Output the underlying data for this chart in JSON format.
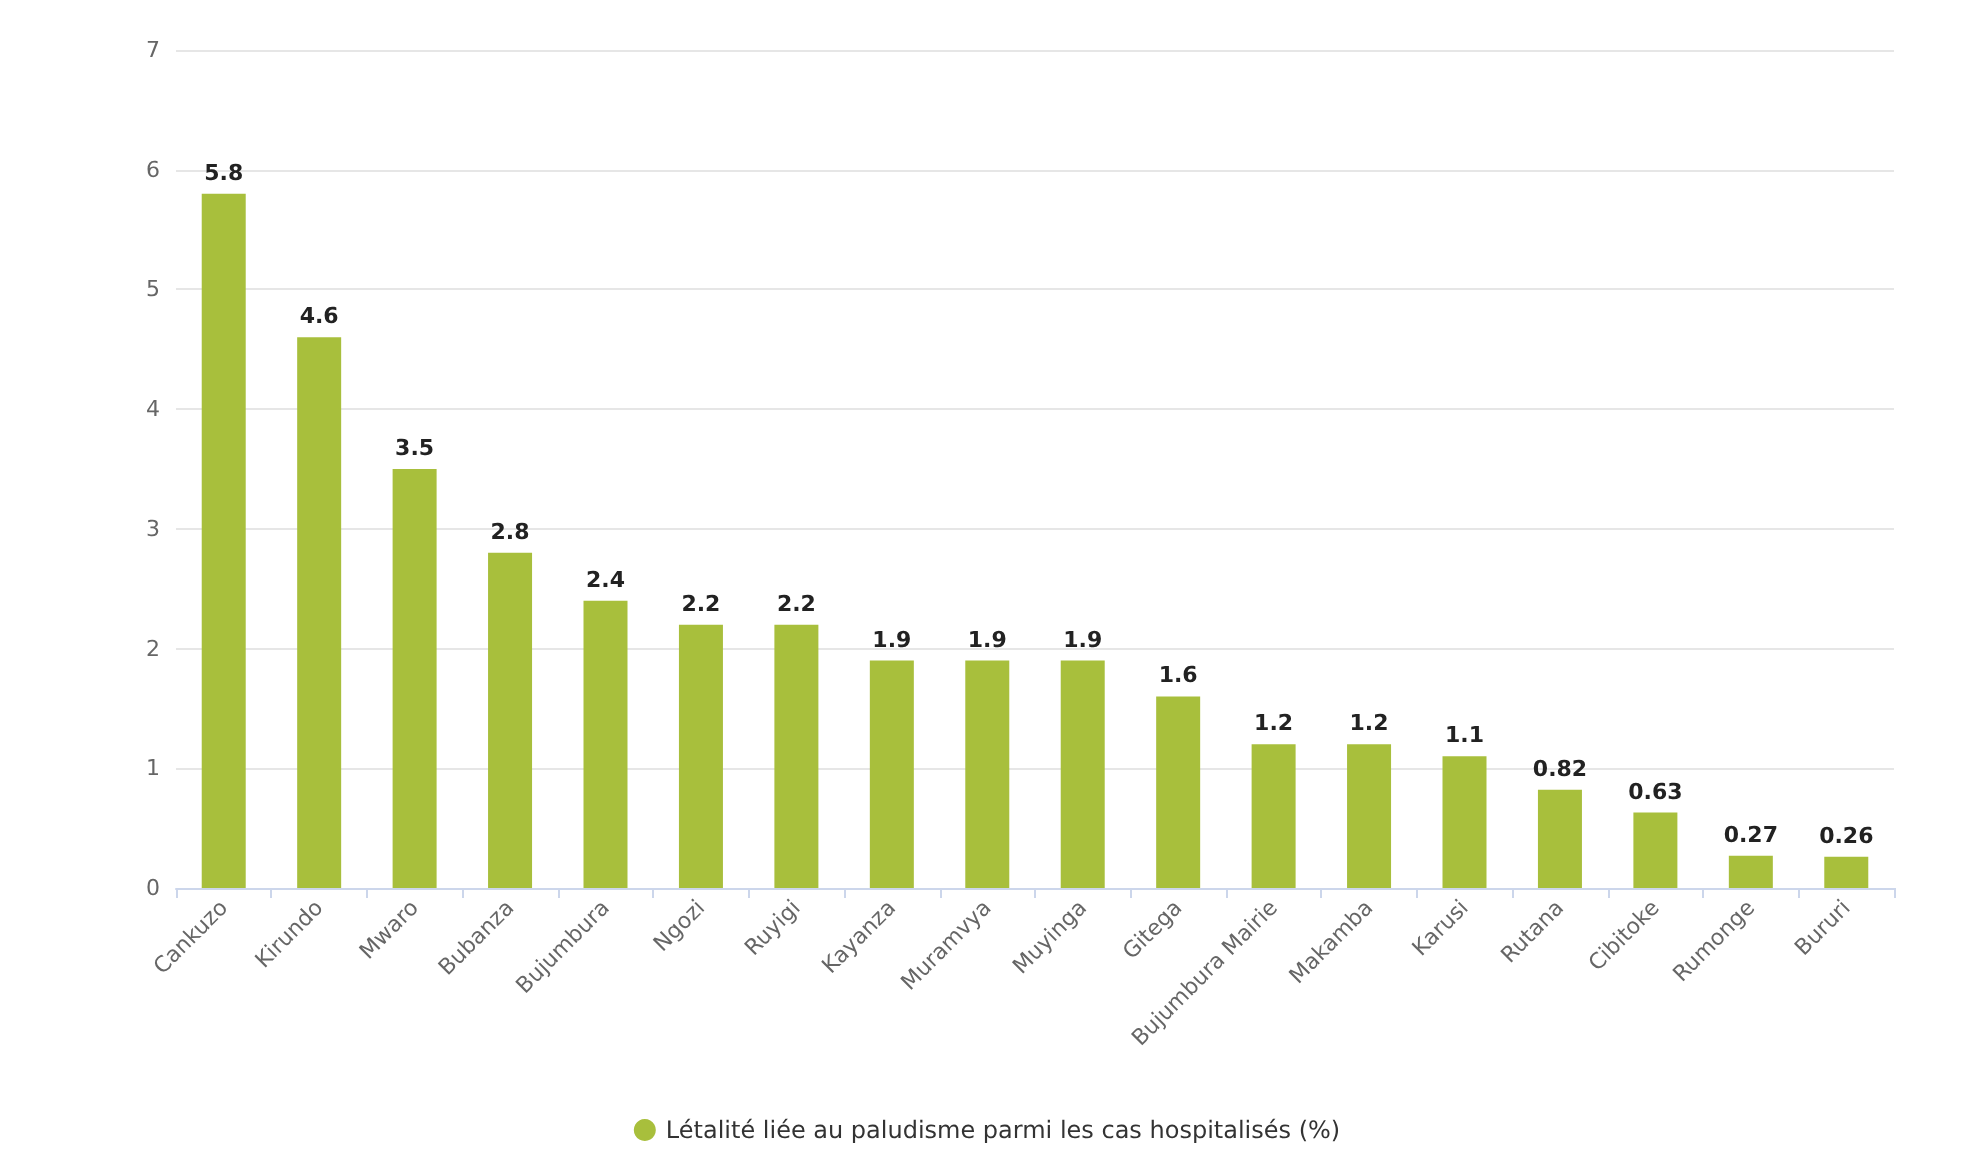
{
  "chart_data": {
    "type": "bar",
    "categories": [
      "Cankuzo",
      "Kirundo",
      "Mwaro",
      "Bubanza",
      "Bujumbura",
      "Ngozi",
      "Ruyigi",
      "Kayanza",
      "Muramvya",
      "Muyinga",
      "Gitega",
      "Bujumbura Mairie",
      "Makamba",
      "Karusi",
      "Rutana",
      "Cibitoke",
      "Rumonge",
      "Bururi"
    ],
    "series": [
      {
        "name": "Létalité liée au paludisme parmi les cas hospitalisés (%)",
        "color": "#a8bf3c",
        "values": [
          5.8,
          4.6,
          3.5,
          2.8,
          2.4,
          2.2,
          2.2,
          1.9,
          1.9,
          1.9,
          1.6,
          1.2,
          1.2,
          1.1,
          0.82,
          0.63,
          0.27,
          0.26
        ]
      }
    ],
    "ylim": [
      0,
      7
    ],
    "yticks": [
      0,
      1,
      2,
      3,
      4,
      5,
      6,
      7
    ],
    "grid": "y",
    "legend": "bottom",
    "data_labels": true
  }
}
